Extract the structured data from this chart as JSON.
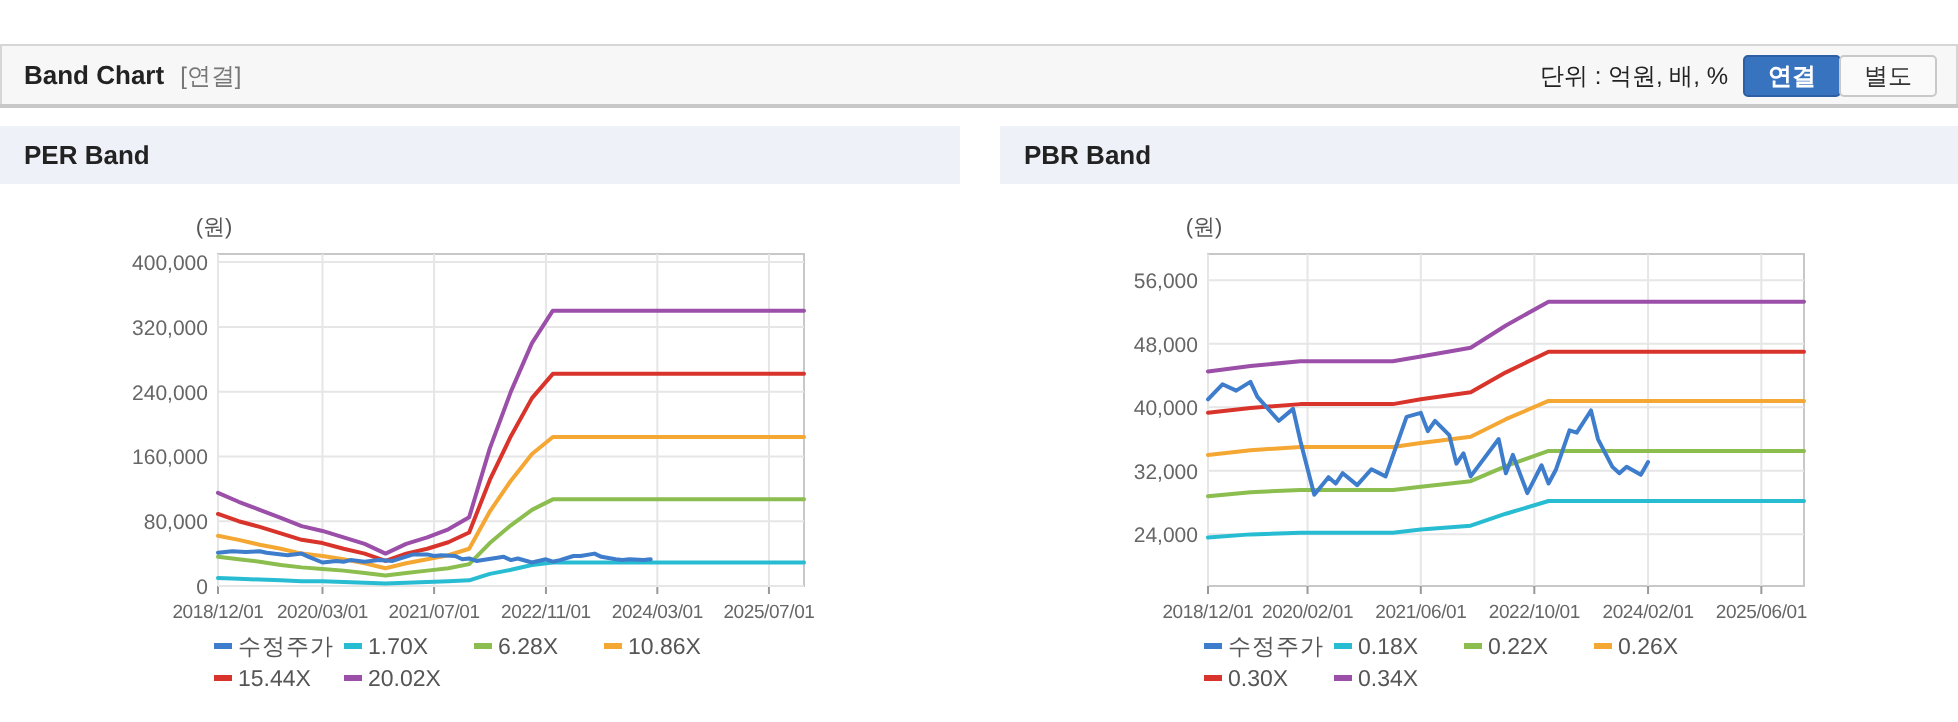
{
  "chart_data": [
    {
      "type": "other",
      "title": "Band Chart",
      "annotations": [
        "[연결]",
        "단위 : 억원, 배, %",
        "연결",
        "별도"
      ]
    },
    {
      "type": "line",
      "title": "PER Band",
      "ylabel": "(원)",
      "grid": true,
      "legend": "bottom",
      "xlim": [
        "2018-12-01",
        "2025-12-01"
      ],
      "xticks": [
        {
          "value": "2018-12-01",
          "label": "2018/12/01"
        },
        {
          "value": "2020-03-01",
          "label": "2020/03/01"
        },
        {
          "value": "2021-07-01",
          "label": "2021/07/01"
        },
        {
          "value": "2022-11-01",
          "label": "2022/11/01"
        },
        {
          "value": "2024-03-01",
          "label": "2024/03/01"
        },
        {
          "value": "2025-07-01",
          "label": "2025/07/01"
        }
      ],
      "ylim": [
        0,
        410000
      ],
      "yticks": [
        {
          "value": 0,
          "label": "0"
        },
        {
          "value": 80000,
          "label": "80,000"
        },
        {
          "value": 160000,
          "label": "160,000"
        },
        {
          "value": 240000,
          "label": "240,000"
        },
        {
          "value": 320000,
          "label": "320,000"
        },
        {
          "value": 400000,
          "label": "400,000"
        }
      ],
      "x": [
        "2018-12",
        "2019-03",
        "2019-06",
        "2019-09",
        "2019-12",
        "2020-03",
        "2020-06",
        "2020-09",
        "2020-12",
        "2021-03",
        "2021-06",
        "2021-09",
        "2021-12",
        "2022-03",
        "2022-06",
        "2022-09",
        "2022-12",
        "2025-12"
      ],
      "series": [
        {
          "name": "수정주가",
          "color": "#3e7dcc",
          "x": [
            "2018-12",
            "2019-02",
            "2019-04",
            "2019-06",
            "2019-07",
            "2019-10",
            "2019-12",
            "2020-01",
            "2020-03",
            "2020-05",
            "2020-06",
            "2020-07",
            "2020-09",
            "2020-11",
            "2021-01",
            "2021-04",
            "2021-06",
            "2021-07",
            "2021-08",
            "2021-10",
            "2021-11",
            "2021-12",
            "2022-01",
            "2022-05",
            "2022-06",
            "2022-07",
            "2022-09",
            "2022-11",
            "2022-12",
            "2023-01",
            "2023-03",
            "2023-04",
            "2023-06",
            "2023-07",
            "2023-09",
            "2023-10",
            "2023-11",
            "2024-01",
            "2024-02"
          ],
          "values": [
            41000,
            43000,
            42000,
            43000,
            41000,
            38000,
            40000,
            36000,
            29000,
            31000,
            30000,
            32000,
            30000,
            32000,
            31000,
            39000,
            39000,
            37000,
            38000,
            37000,
            33000,
            34000,
            31000,
            36000,
            32000,
            34000,
            29000,
            33000,
            30000,
            32000,
            37000,
            37000,
            40000,
            36000,
            33000,
            32000,
            33000,
            32000,
            33000
          ]
        },
        {
          "name": "1.70X",
          "color": "#27bcd1",
          "values": [
            10000,
            9000,
            8000,
            7000,
            6000,
            6000,
            5000,
            4000,
            3000,
            4000,
            5000,
            6000,
            7000,
            15000,
            20000,
            26000,
            29000,
            29000
          ]
        },
        {
          "name": "6.28X",
          "color": "#8bbd4f",
          "values": [
            36000,
            33000,
            30000,
            26000,
            23000,
            21000,
            19000,
            16000,
            13000,
            16000,
            19000,
            22000,
            27000,
            53000,
            75000,
            94000,
            107000,
            107000
          ]
        },
        {
          "name": "10.86X",
          "color": "#f5a733",
          "values": [
            62000,
            57000,
            51000,
            46000,
            40000,
            37000,
            33000,
            28000,
            22000,
            28000,
            33000,
            38000,
            46000,
            92000,
            130000,
            163000,
            184000,
            184000
          ]
        },
        {
          "name": "15.44X",
          "color": "#d9342b",
          "values": [
            89000,
            80000,
            73000,
            65000,
            57000,
            53000,
            46000,
            40000,
            31000,
            40000,
            46000,
            54000,
            66000,
            131000,
            185000,
            232000,
            262000,
            262000
          ]
        },
        {
          "name": "20.02X",
          "color": "#9b4fa8",
          "values": [
            115000,
            104000,
            94000,
            84000,
            74000,
            68000,
            60000,
            52000,
            40000,
            52000,
            60000,
            70000,
            85000,
            170000,
            240000,
            300000,
            340000,
            340000
          ]
        }
      ]
    },
    {
      "type": "line",
      "title": "PBR Band",
      "ylabel": "(원)",
      "grid": true,
      "legend": "bottom",
      "xlim": [
        "2018-12-01",
        "2025-12-01"
      ],
      "xticks": [
        {
          "value": "2018-12-01",
          "label": "2018/12/01"
        },
        {
          "value": "2020-02-01",
          "label": "2020/02/01"
        },
        {
          "value": "2021-06-01",
          "label": "2021/06/01"
        },
        {
          "value": "2022-10-01",
          "label": "2022/10/01"
        },
        {
          "value": "2024-02-01",
          "label": "2024/02/01"
        },
        {
          "value": "2025-06-01",
          "label": "2025/06/01"
        }
      ],
      "ylim": [
        17500,
        59300
      ],
      "yticks": [
        {
          "value": 24000,
          "label": "24,000"
        },
        {
          "value": 32000,
          "label": "32,000"
        },
        {
          "value": 40000,
          "label": "40,000"
        },
        {
          "value": 48000,
          "label": "48,000"
        },
        {
          "value": 56000,
          "label": "56,000"
        }
      ],
      "x": [
        "2018-12",
        "2019-06",
        "2020-01",
        "2021-02",
        "2021-06",
        "2022-01",
        "2022-06",
        "2022-12",
        "2025-12"
      ],
      "series": [
        {
          "name": "수정주가",
          "color": "#3e7dcc",
          "x": [
            "2018-12",
            "2019-02",
            "2019-04",
            "2019-06",
            "2019-07",
            "2019-10",
            "2019-12",
            "2020-01",
            "2020-03",
            "2020-05",
            "2020-06",
            "2020-07",
            "2020-09",
            "2020-11",
            "2021-01",
            "2021-04",
            "2021-06",
            "2021-07",
            "2021-08",
            "2021-10",
            "2021-11",
            "2021-12",
            "2022-01",
            "2022-05",
            "2022-06",
            "2022-07",
            "2022-09",
            "2022-11",
            "2022-12",
            "2023-01",
            "2023-03",
            "2023-04",
            "2023-06",
            "2023-07",
            "2023-09",
            "2023-10",
            "2023-11",
            "2024-01",
            "2024-02"
          ],
          "values": [
            41000,
            42900,
            42100,
            43200,
            41300,
            38300,
            39800,
            35800,
            29000,
            31200,
            30400,
            31700,
            30200,
            32200,
            31300,
            38800,
            39300,
            37000,
            38300,
            36500,
            32900,
            34200,
            31300,
            36000,
            31700,
            34000,
            29200,
            32700,
            30400,
            32100,
            37100,
            36800,
            39600,
            36000,
            32500,
            31700,
            32500,
            31500,
            33100
          ]
        },
        {
          "name": "0.18X",
          "color": "#27bcd1",
          "values": [
            23600,
            24000,
            24200,
            24200,
            24600,
            25100,
            26600,
            28200,
            28200
          ]
        },
        {
          "name": "0.22X",
          "color": "#8bbd4f",
          "values": [
            28800,
            29300,
            29600,
            29600,
            30000,
            30700,
            32600,
            34500,
            34500
          ]
        },
        {
          "name": "0.26X",
          "color": "#f5a733",
          "values": [
            34000,
            34600,
            35000,
            35000,
            35500,
            36300,
            38500,
            40800,
            40800
          ]
        },
        {
          "name": "0.30X",
          "color": "#d9342b",
          "values": [
            39300,
            39900,
            40400,
            40400,
            41000,
            41900,
            44400,
            47000,
            47000
          ]
        },
        {
          "name": "0.34X",
          "color": "#9b4fa8",
          "values": [
            44500,
            45200,
            45800,
            45800,
            46400,
            47500,
            50300,
            53300,
            53300
          ]
        }
      ]
    }
  ]
}
